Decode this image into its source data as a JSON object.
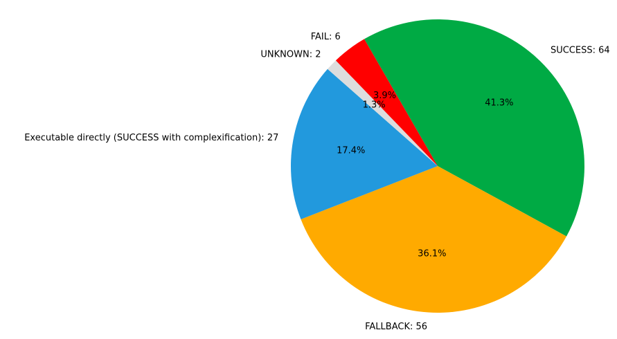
{
  "chart_data": {
    "type": "pie",
    "title": "",
    "start_angle_deg": 120,
    "direction": "clockwise",
    "slices": [
      {
        "label": "SUCCESS: 64",
        "value": 64,
        "percent_label": "41.3%",
        "color": "#00aa44"
      },
      {
        "label": "FALLBACK: 56",
        "value": 56,
        "percent_label": "36.1%",
        "color": "#ffaa00"
      },
      {
        "label": "Executable directly (SUCCESS with complexification): 27",
        "value": 27,
        "percent_label": "17.4%",
        "color": "#2299dd"
      },
      {
        "label": "UNKNOWN: 2",
        "value": 2,
        "percent_label": "1.3%",
        "color": "#dddddd"
      },
      {
        "label": "FAIL: 6",
        "value": 6,
        "percent_label": "3.9%",
        "color": "#ff0000"
      }
    ],
    "legend": "none"
  }
}
